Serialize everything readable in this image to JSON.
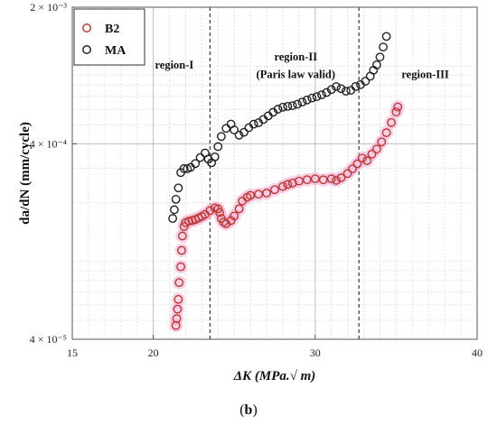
{
  "caption": {
    "open": "(",
    "letter": "b",
    "close": ")"
  },
  "chart_data": {
    "type": "scatter",
    "xlabel": "ΔK (MPa.√ m)",
    "ylabel": "da/dN (mm/cycle)",
    "xscale": "linear",
    "yscale": "log",
    "xlim": [
      15,
      40
    ],
    "ylim": [
      4e-05,
      0.002
    ],
    "xticks": [
      {
        "value": 15,
        "label": "15"
      },
      {
        "value": 20,
        "label": "20"
      },
      {
        "value": 30,
        "label": "30"
      },
      {
        "value": 40,
        "label": "40"
      }
    ],
    "yticks": [
      {
        "value": 4e-05,
        "label": "4 × 10⁻⁵"
      },
      {
        "value": 0.0004,
        "label": "4 × 10⁻⁴"
      },
      {
        "value": 0.002,
        "label": "2 × 10⁻³"
      }
    ],
    "grid": true,
    "legend_position": "top-left",
    "region_boundaries": [
      23.5,
      32.7
    ],
    "annotations": [
      {
        "text": "region-I",
        "x": 21.3,
        "y": 0.00097
      },
      {
        "text": "region-II",
        "x": 28.8,
        "y": 0.00107
      },
      {
        "text": "(Paris law valid)",
        "x": 28.8,
        "y": 0.00087
      },
      {
        "text": "region-III",
        "x": 36.8,
        "y": 0.00087
      }
    ],
    "series": [
      {
        "name": "B2",
        "marker": "open-circle",
        "color": "#c0392b",
        "halo": "#f4b6dc",
        "x": [
          21.4,
          21.45,
          21.5,
          21.55,
          21.6,
          21.7,
          21.75,
          21.8,
          21.9,
          22.0,
          22.2,
          22.4,
          22.6,
          22.8,
          23.0,
          23.2,
          23.5,
          23.8,
          24.0,
          24.1,
          24.2,
          24.35,
          24.5,
          24.8,
          25.0,
          25.3,
          25.5,
          25.8,
          26.0,
          26.5,
          27.0,
          27.5,
          28.0,
          28.3,
          28.6,
          29.0,
          29.5,
          30.0,
          30.5,
          31.0,
          31.3,
          31.6,
          32.0,
          32.3,
          32.6,
          32.9,
          33.2,
          33.5,
          33.8,
          34.1,
          34.4,
          34.7,
          35.0,
          35.1
        ],
        "y": [
          4.7e-05,
          5.1e-05,
          5.7e-05,
          6.4e-05,
          7.8e-05,
          9.4e-05,
          0.000114,
          0.000135,
          0.000151,
          0.000158,
          0.000161,
          0.000162,
          0.000164,
          0.000167,
          0.00017,
          0.000174,
          0.000182,
          0.000188,
          0.000186,
          0.000178,
          0.000166,
          0.000159,
          0.000156,
          0.000162,
          0.000171,
          0.000186,
          0.000204,
          0.000213,
          0.000218,
          0.000221,
          0.000224,
          0.000233,
          0.000242,
          0.000248,
          0.000252,
          0.000258,
          0.000262,
          0.000265,
          0.000262,
          0.000265,
          0.00026,
          0.000268,
          0.000282,
          0.000298,
          0.000316,
          0.000338,
          0.000328,
          0.000354,
          0.000376,
          0.000409,
          0.000456,
          0.000514,
          0.000582,
          0.000618
        ]
      },
      {
        "name": "MA",
        "marker": "open-circle",
        "color": "#222222",
        "x": [
          21.2,
          21.3,
          21.4,
          21.55,
          21.7,
          21.9,
          22.1,
          22.3,
          22.6,
          22.9,
          23.2,
          23.4,
          23.6,
          23.8,
          24.0,
          24.2,
          24.5,
          24.8,
          25.0,
          25.3,
          25.6,
          25.9,
          26.2,
          26.5,
          26.8,
          27.1,
          27.4,
          27.7,
          28.0,
          28.3,
          28.6,
          28.9,
          29.2,
          29.5,
          29.8,
          30.1,
          30.4,
          30.7,
          31.0,
          31.3,
          31.6,
          31.9,
          32.2,
          32.5,
          32.8,
          33.1,
          33.4,
          33.6,
          33.8,
          34.0,
          34.2,
          34.4
        ],
        "y": [
          0.000166,
          0.000184,
          0.000208,
          0.000238,
          0.000285,
          0.000299,
          0.000298,
          0.000303,
          0.000317,
          0.00034,
          0.000359,
          0.000334,
          0.00032,
          0.000343,
          0.000387,
          0.000436,
          0.00048,
          0.000505,
          0.000471,
          0.000443,
          0.000458,
          0.000484,
          0.000504,
          0.000513,
          0.000533,
          0.000556,
          0.00058,
          0.000602,
          0.000616,
          0.000622,
          0.000627,
          0.000638,
          0.000654,
          0.000671,
          0.000686,
          0.000697,
          0.000712,
          0.000732,
          0.000758,
          0.000785,
          0.000766,
          0.000744,
          0.000751,
          0.000786,
          0.000803,
          0.000836,
          0.000887,
          0.000952,
          0.001014,
          0.001112,
          0.001251,
          0.001418
        ]
      }
    ]
  }
}
